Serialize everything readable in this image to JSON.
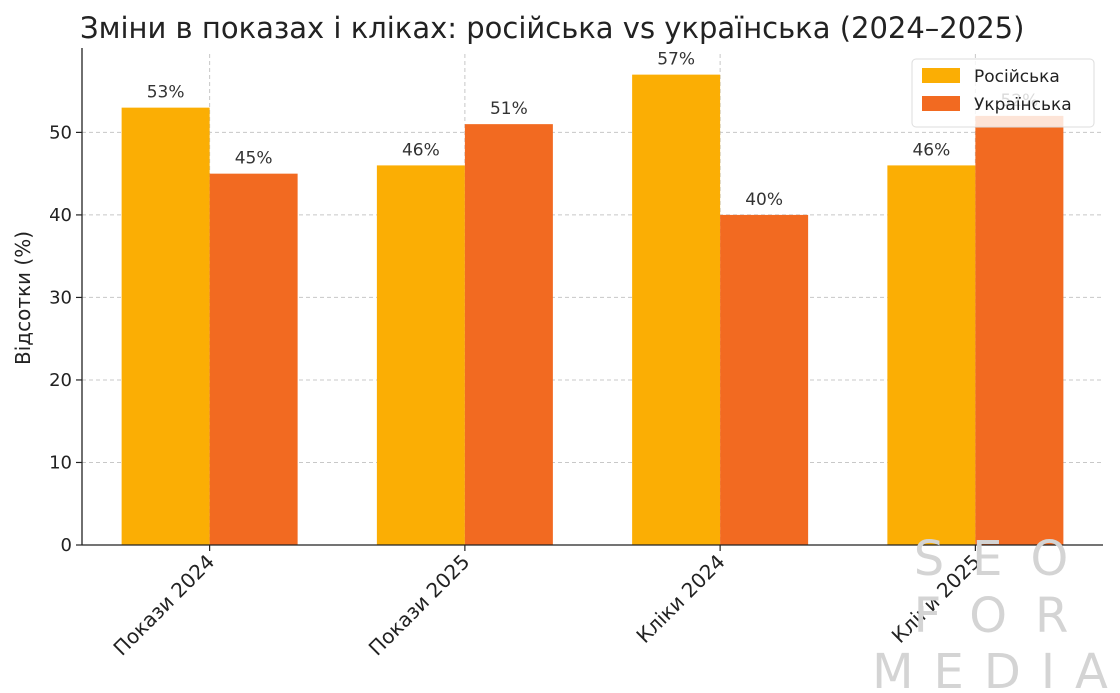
{
  "chart_data": {
    "type": "bar",
    "title": "Зміни в показах і кліках: російська vs українська (2024–2025)",
    "xlabel": "",
    "ylabel": "Відсотки (%)",
    "ylim": [
      0,
      59.5
    ],
    "yticks": [
      0,
      10,
      20,
      30,
      40,
      50
    ],
    "categories": [
      "Покази 2024",
      "Покази 2025",
      "Кліки 2024",
      "Кліки 2025"
    ],
    "series": [
      {
        "name": "Російська",
        "values": [
          53,
          46,
          57,
          46
        ],
        "color": "#FBAE04"
      },
      {
        "name": "Українська",
        "values": [
          45,
          51,
          40,
          52
        ],
        "color": "#F26A21"
      }
    ],
    "data_label_suffix": "%",
    "grid": true,
    "legend_position": "top-right"
  },
  "watermark": {
    "line1": "SEO",
    "line2": "FOR",
    "line3": "MEDIA"
  }
}
